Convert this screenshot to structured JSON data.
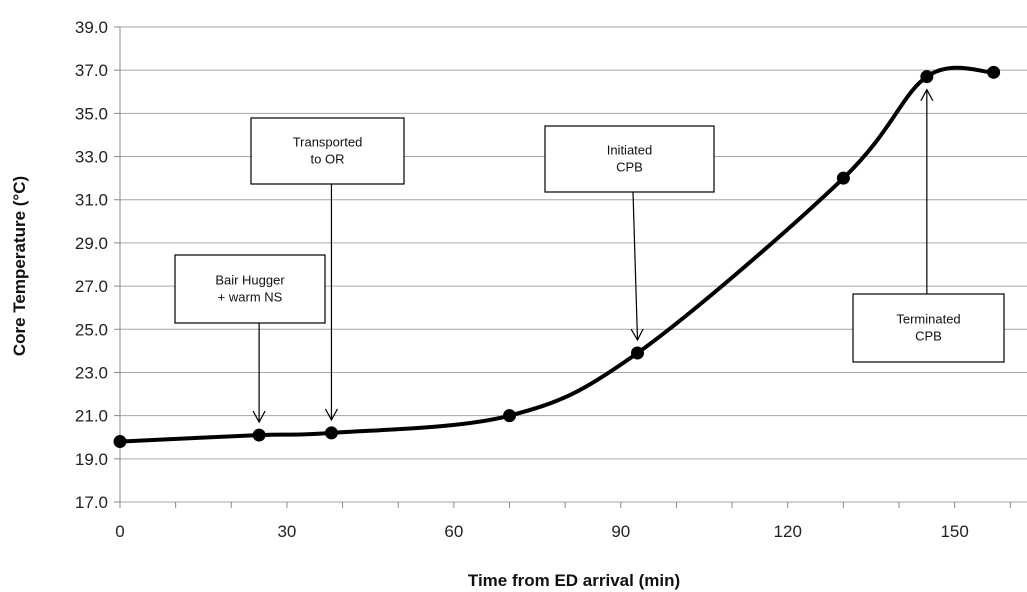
{
  "chart_data": {
    "type": "line",
    "title": "",
    "xlabel": "Time from ED arrival (min)",
    "ylabel": "Core Temperature (°C)",
    "xlim": [
      0,
      163
    ],
    "ylim": [
      17.0,
      39.0
    ],
    "xticks": [
      0,
      30,
      60,
      90,
      120,
      150
    ],
    "xtick_labels": [
      "0",
      "30",
      "60",
      "90",
      "120",
      "150"
    ],
    "yticks": [
      17,
      19,
      21,
      23,
      25,
      27,
      29,
      31,
      33,
      35,
      37,
      39
    ],
    "ytick_labels": [
      "17.0",
      "19.0",
      "21.0",
      "23.0",
      "25.0",
      "27.0",
      "29.0",
      "31.0",
      "33.0",
      "35.0",
      "37.0",
      "39.0"
    ],
    "grid": true,
    "smooth": true,
    "line_color": "#000000",
    "series": [
      {
        "x": [
          0,
          25,
          38,
          70,
          93,
          130,
          145,
          157
        ],
        "y": [
          19.8,
          20.1,
          20.2,
          21.0,
          23.9,
          32.0,
          36.7,
          36.9
        ]
      }
    ],
    "annotations": [
      {
        "lines": [
          "Bair Hugger",
          "+ warm NS"
        ],
        "x": 25,
        "y": 20.1
      },
      {
        "lines": [
          "Transported",
          "to OR"
        ],
        "x": 38,
        "y": 20.2
      },
      {
        "lines": [
          "Initiated",
          "CPB"
        ],
        "x": 93,
        "y": 23.9
      },
      {
        "lines": [
          "Terminated",
          "CPB"
        ],
        "x": 145,
        "y": 36.7
      }
    ]
  }
}
